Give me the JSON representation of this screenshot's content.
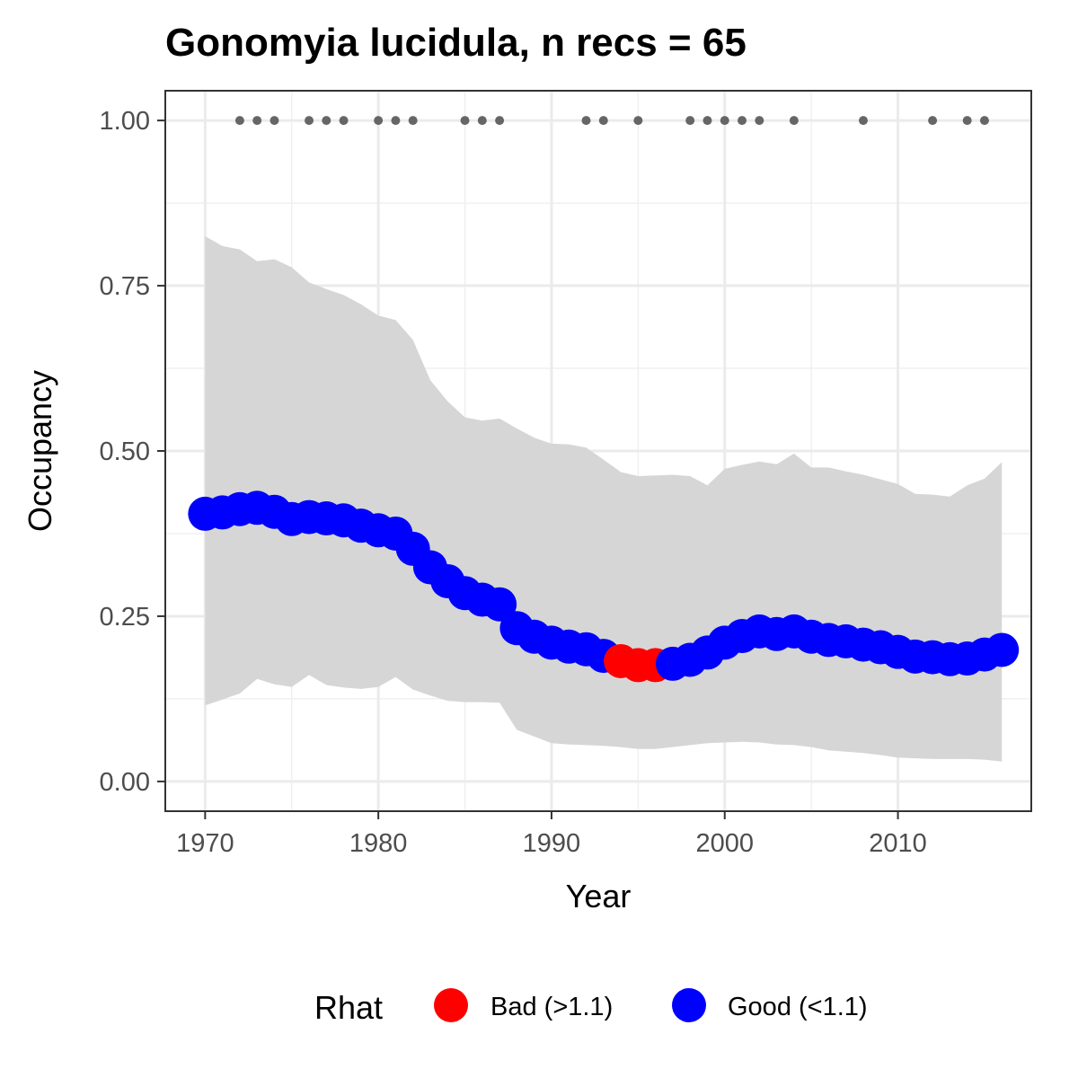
{
  "chart_data": {
    "type": "line",
    "title": "Gonomyia lucidula, n recs = 65",
    "xlabel": "Year",
    "ylabel": "Occupancy",
    "xlim": [
      1967.7,
      2017.7
    ],
    "ylim": [
      -0.045,
      1.045
    ],
    "x_ticks": [
      1970,
      1980,
      1990,
      2000,
      2010
    ],
    "x_tick_labels": [
      "1970",
      "1980",
      "1990",
      "2000",
      "2010"
    ],
    "y_ticks": [
      0,
      0.25,
      0.5,
      0.75,
      1.0
    ],
    "y_tick_labels": [
      "0.00",
      "0.25",
      "0.50",
      "0.75",
      "1.00"
    ],
    "grid": true,
    "legend": {
      "title": "Rhat",
      "position": "bottom",
      "entries": [
        {
          "label": "Bad (>1.1)",
          "color": "#ff0000"
        },
        {
          "label": "Good (<1.1)",
          "color": "#0000ff"
        }
      ]
    },
    "colors": {
      "bad": "#ff0000",
      "good": "#0000ff",
      "ribbon": "#d6d6d6",
      "record": "#666666"
    },
    "years": [
      1970,
      1971,
      1972,
      1973,
      1974,
      1975,
      1976,
      1977,
      1978,
      1979,
      1980,
      1981,
      1982,
      1983,
      1984,
      1985,
      1986,
      1987,
      1988,
      1989,
      1990,
      1991,
      1992,
      1993,
      1994,
      1995,
      1996,
      1997,
      1998,
      1999,
      2000,
      2001,
      2002,
      2003,
      2004,
      2005,
      2006,
      2007,
      2008,
      2009,
      2010,
      2011,
      2012,
      2013,
      2014,
      2015,
      2016
    ],
    "occupancy": [
      0.405,
      0.407,
      0.412,
      0.414,
      0.408,
      0.397,
      0.4,
      0.398,
      0.395,
      0.387,
      0.38,
      0.375,
      0.352,
      0.324,
      0.303,
      0.285,
      0.275,
      0.268,
      0.232,
      0.219,
      0.21,
      0.204,
      0.2,
      0.19,
      0.182,
      0.176,
      0.176,
      0.178,
      0.184,
      0.195,
      0.21,
      0.22,
      0.227,
      0.223,
      0.227,
      0.219,
      0.214,
      0.212,
      0.207,
      0.203,
      0.196,
      0.189,
      0.188,
      0.185,
      0.186,
      0.192,
      0.199
    ],
    "rhat_status": [
      "good",
      "good",
      "good",
      "good",
      "good",
      "good",
      "good",
      "good",
      "good",
      "good",
      "good",
      "good",
      "good",
      "good",
      "good",
      "good",
      "good",
      "good",
      "good",
      "good",
      "good",
      "good",
      "good",
      "good",
      "bad",
      "bad",
      "bad",
      "good",
      "good",
      "good",
      "good",
      "good",
      "good",
      "good",
      "good",
      "good",
      "good",
      "good",
      "good",
      "good",
      "good",
      "good",
      "good",
      "good",
      "good",
      "good",
      "good"
    ],
    "upper": [
      0.825,
      0.81,
      0.805,
      0.787,
      0.79,
      0.778,
      0.755,
      0.745,
      0.736,
      0.722,
      0.705,
      0.698,
      0.668,
      0.607,
      0.575,
      0.551,
      0.546,
      0.549,
      0.534,
      0.52,
      0.511,
      0.51,
      0.505,
      0.487,
      0.468,
      0.462,
      0.463,
      0.464,
      0.462,
      0.448,
      0.473,
      0.479,
      0.484,
      0.48,
      0.496,
      0.475,
      0.475,
      0.469,
      0.464,
      0.457,
      0.45,
      0.435,
      0.434,
      0.431,
      0.448,
      0.458,
      0.483
    ],
    "lower": [
      0.115,
      0.124,
      0.133,
      0.155,
      0.147,
      0.143,
      0.161,
      0.146,
      0.142,
      0.14,
      0.143,
      0.158,
      0.139,
      0.13,
      0.122,
      0.12,
      0.12,
      0.119,
      0.078,
      0.068,
      0.058,
      0.056,
      0.055,
      0.054,
      0.052,
      0.049,
      0.049,
      0.052,
      0.055,
      0.058,
      0.059,
      0.06,
      0.059,
      0.056,
      0.055,
      0.052,
      0.047,
      0.045,
      0.043,
      0.04,
      0.036,
      0.035,
      0.034,
      0.034,
      0.034,
      0.033,
      0.03
    ],
    "record_years": [
      1972,
      1973,
      1974,
      1976,
      1977,
      1978,
      1980,
      1981,
      1982,
      1985,
      1986,
      1987,
      1992,
      1993,
      1995,
      1998,
      1999,
      2000,
      2001,
      2002,
      2004,
      2008,
      2012,
      2014,
      2015
    ],
    "record_value": 1.0
  }
}
